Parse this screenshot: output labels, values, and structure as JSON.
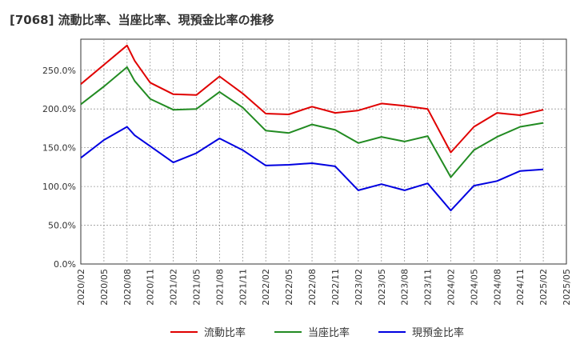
{
  "chart_data": {
    "type": "line",
    "title": "[7068]  流動比率、当座比率、現預金比率の推移",
    "xlabel": "",
    "ylabel": "",
    "ylim": [
      0,
      290
    ],
    "yticks": [
      0,
      50,
      100,
      150,
      200,
      250
    ],
    "ytick_labels": [
      "0.0%",
      "50.0%",
      "100.0%",
      "150.0%",
      "200.0%",
      "250.0%"
    ],
    "x": [
      "2020/02",
      "2020/05",
      "2020/08",
      "2020/11",
      "2021/02",
      "2021/05",
      "2021/08",
      "2021/11",
      "2022/02",
      "2022/05",
      "2022/08",
      "2022/11",
      "2023/02",
      "2023/05",
      "2023/08",
      "2023/11",
      "2024/02",
      "2024/05",
      "2024/08",
      "2024/11",
      "2025/02",
      "2025/05"
    ],
    "series": [
      {
        "name": "流動比率",
        "color": "#e00000",
        "points": [
          [
            "2020/02",
            232
          ],
          [
            "2020/05",
            257
          ],
          [
            "2020/08",
            282
          ],
          [
            "2020/09",
            262
          ],
          [
            "2020/11",
            234
          ],
          [
            "2021/02",
            219
          ],
          [
            "2021/05",
            218
          ],
          [
            "2021/08",
            242
          ],
          [
            "2021/11",
            220
          ],
          [
            "2022/02",
            194
          ],
          [
            "2022/05",
            193
          ],
          [
            "2022/08",
            203
          ],
          [
            "2022/11",
            195
          ],
          [
            "2023/02",
            198
          ],
          [
            "2023/05",
            207
          ],
          [
            "2023/08",
            204
          ],
          [
            "2023/11",
            200
          ],
          [
            "2024/02",
            144
          ],
          [
            "2024/05",
            177
          ],
          [
            "2024/08",
            195
          ],
          [
            "2024/11",
            192
          ],
          [
            "2025/02",
            199
          ]
        ]
      },
      {
        "name": "当座比率",
        "color": "#228b22",
        "points": [
          [
            "2020/02",
            206
          ],
          [
            "2020/05",
            229
          ],
          [
            "2020/08",
            254
          ],
          [
            "2020/09",
            236
          ],
          [
            "2020/11",
            213
          ],
          [
            "2021/02",
            199
          ],
          [
            "2021/05",
            200
          ],
          [
            "2021/08",
            222
          ],
          [
            "2021/11",
            202
          ],
          [
            "2022/02",
            172
          ],
          [
            "2022/05",
            169
          ],
          [
            "2022/08",
            180
          ],
          [
            "2022/11",
            173
          ],
          [
            "2023/02",
            156
          ],
          [
            "2023/05",
            164
          ],
          [
            "2023/08",
            158
          ],
          [
            "2023/11",
            165
          ],
          [
            "2024/02",
            112
          ],
          [
            "2024/05",
            147
          ],
          [
            "2024/08",
            164
          ],
          [
            "2024/11",
            177
          ],
          [
            "2025/02",
            182
          ]
        ]
      },
      {
        "name": "現預金比率",
        "color": "#0000e0",
        "points": [
          [
            "2020/02",
            137
          ],
          [
            "2020/05",
            160
          ],
          [
            "2020/08",
            177
          ],
          [
            "2020/09",
            166
          ],
          [
            "2020/11",
            152
          ],
          [
            "2021/02",
            131
          ],
          [
            "2021/05",
            143
          ],
          [
            "2021/08",
            162
          ],
          [
            "2021/11",
            147
          ],
          [
            "2022/02",
            127
          ],
          [
            "2022/05",
            128
          ],
          [
            "2022/08",
            130
          ],
          [
            "2022/11",
            126
          ],
          [
            "2023/02",
            95
          ],
          [
            "2023/05",
            103
          ],
          [
            "2023/08",
            95
          ],
          [
            "2023/11",
            104
          ],
          [
            "2024/02",
            69
          ],
          [
            "2024/05",
            101
          ],
          [
            "2024/08",
            107
          ],
          [
            "2024/11",
            120
          ],
          [
            "2025/02",
            122
          ]
        ]
      }
    ],
    "grid": true,
    "legend": "bottom"
  }
}
